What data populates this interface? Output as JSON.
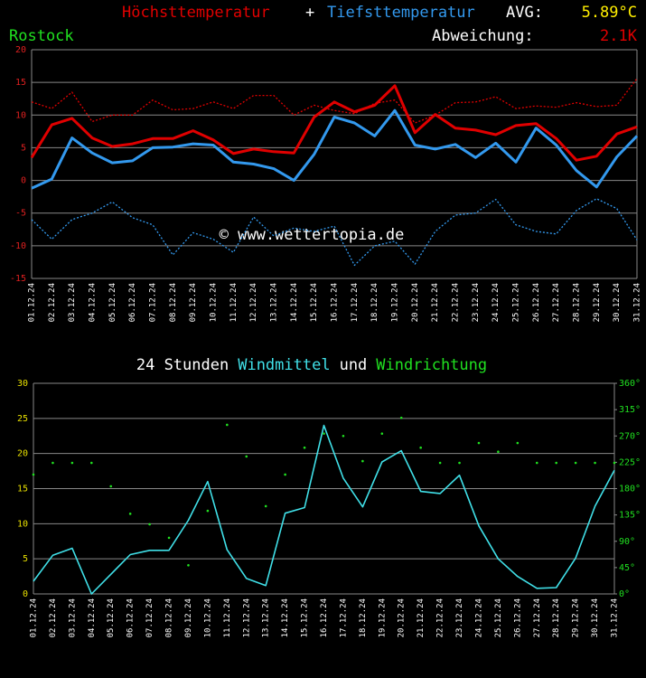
{
  "chart_data": [
    {
      "type": "line",
      "location": "Rostock",
      "title_joiner": "+",
      "avg_label": "AVG:",
      "avg": "5.89°C",
      "deviation_label": "Abweichung:",
      "deviation": "2.1K",
      "watermark": "© www.wettertopia.de",
      "categories": [
        "01.12.24",
        "02.12.24",
        "03.12.24",
        "04.12.24",
        "05.12.24",
        "06.12.24",
        "07.12.24",
        "08.12.24",
        "09.12.24",
        "10.12.24",
        "11.12.24",
        "12.12.24",
        "13.12.24",
        "14.12.24",
        "15.12.24",
        "16.12.24",
        "17.12.24",
        "18.12.24",
        "19.12.24",
        "20.12.24",
        "21.12.24",
        "22.12.24",
        "23.12.24",
        "24.12.24",
        "25.12.24",
        "26.12.24",
        "27.12.24",
        "28.12.24",
        "29.12.24",
        "30.12.24",
        "31.12.24"
      ],
      "ylim": [
        -15,
        20
      ],
      "yticks": [
        -15,
        -10,
        -5,
        0,
        5,
        10,
        15,
        20
      ],
      "ytick_color": "#e02020",
      "grid": true,
      "series": [
        {
          "name": "Höchsttemperatur",
          "color": "#e00000",
          "line_width": 3,
          "values": [
            3.5,
            8.5,
            9.5,
            6.5,
            5.2,
            5.6,
            6.4,
            6.4,
            7.6,
            6.2,
            4.1,
            4.8,
            4.4,
            4.2,
            9.7,
            12,
            10.5,
            11.5,
            14.5,
            7.3,
            10.1,
            8,
            7.7,
            7,
            8.4,
            8.7,
            6.4,
            3.1,
            3.7,
            7.1,
            8.2
          ]
        },
        {
          "name": "Tiefsttemperatur",
          "color": "#3399ee",
          "line_width": 3,
          "values": [
            -1.2,
            0.2,
            6.5,
            4.2,
            2.7,
            3,
            5,
            5.1,
            5.6,
            5.4,
            2.8,
            2.5,
            1.8,
            0,
            4,
            9.7,
            8.8,
            6.8,
            10.7,
            5.4,
            4.8,
            5.5,
            3.5,
            5.7,
            2.8,
            8,
            5.4,
            1.5,
            -1,
            3.6,
            6.8
          ]
        },
        {
          "color": "#e00000",
          "line_width": 1.3,
          "line_style": "dotted",
          "values": [
            12,
            11,
            13.5,
            9,
            10,
            10,
            12.3,
            10.8,
            11,
            12,
            11,
            13,
            13,
            10,
            11.5,
            10.7,
            10.2,
            11.8,
            12.3,
            8.8,
            10,
            11.9,
            12,
            12.8,
            11,
            11.4,
            11.2,
            11.9,
            11.3,
            11.5,
            15.6
          ]
        },
        {
          "color": "#3399ee",
          "line_width": 1.3,
          "line_style": "dotted",
          "values": [
            -6,
            -9,
            -6,
            -5,
            -3.3,
            -5.7,
            -6.8,
            -11.4,
            -8,
            -9,
            -11,
            -5.6,
            -8.5,
            -7.3,
            -7.8,
            -7,
            -13,
            -10,
            -9.3,
            -12.8,
            -7.8,
            -5.3,
            -5,
            -2.9,
            -6.8,
            -7.8,
            -8.2,
            -4.6,
            -2.8,
            -4.3,
            -9.1
          ]
        }
      ]
    },
    {
      "type": "line",
      "title_prefix": "24 Stunden",
      "title_joiner": "und",
      "categories": [
        "01.12.24",
        "02.12.24",
        "03.12.24",
        "04.12.24",
        "05.12.24",
        "06.12.24",
        "07.12.24",
        "08.12.24",
        "09.12.24",
        "10.12.24",
        "11.12.24",
        "12.12.24",
        "13.12.24",
        "14.12.24",
        "15.12.24",
        "16.12.24",
        "17.12.24",
        "18.12.24",
        "19.12.24",
        "20.12.24",
        "21.12.24",
        "22.12.24",
        "23.12.24",
        "24.12.24",
        "25.12.24",
        "26.12.24",
        "27.12.24",
        "28.12.24",
        "29.12.24",
        "30.12.24",
        "31.12.24"
      ],
      "ylim": [
        0,
        30
      ],
      "yticks": [
        0,
        5,
        10,
        15,
        20,
        25,
        30
      ],
      "ytick_color": "#e8e000",
      "y2lim": [
        0,
        360
      ],
      "y2ticks": [
        {
          "value": 0,
          "label": "0°"
        },
        {
          "value": 45,
          "label": "45°"
        },
        {
          "value": 90,
          "label": "90°"
        },
        {
          "value": 135,
          "label": "135°"
        },
        {
          "value": 180,
          "label": "180°"
        },
        {
          "value": 225,
          "label": "225°"
        },
        {
          "value": 270,
          "label": "270°"
        },
        {
          "value": 315,
          "label": "315°"
        },
        {
          "value": 360,
          "label": "360°"
        }
      ],
      "y2tick_color": "#20e020",
      "grid": true,
      "series": [
        {
          "name": "Windmittel",
          "color": "#40e0e8",
          "line_width": 1.6,
          "values": [
            1.8,
            5.5,
            6.5,
            0,
            2.8,
            5.6,
            6.2,
            6.2,
            10.5,
            16,
            6.3,
            2.2,
            1.2,
            11.5,
            12.3,
            24,
            16.5,
            12.4,
            18.8,
            20.4,
            14.6,
            14.3,
            16.9,
            9.7,
            5,
            2.5,
            0.8,
            0.9,
            5.1,
            12.5,
            17.6
          ]
        },
        {
          "name": "Windrichtung",
          "color": "#20e020",
          "axis": "y2",
          "line_style": "dots",
          "values": [
            204,
            224,
            224,
            224,
            184,
            137,
            119,
            96,
            49,
            142,
            289,
            235,
            150,
            204,
            250,
            274,
            270,
            227,
            274,
            301,
            250,
            224,
            224,
            258,
            243,
            258,
            224,
            224,
            224,
            224,
            224
          ]
        }
      ]
    }
  ]
}
